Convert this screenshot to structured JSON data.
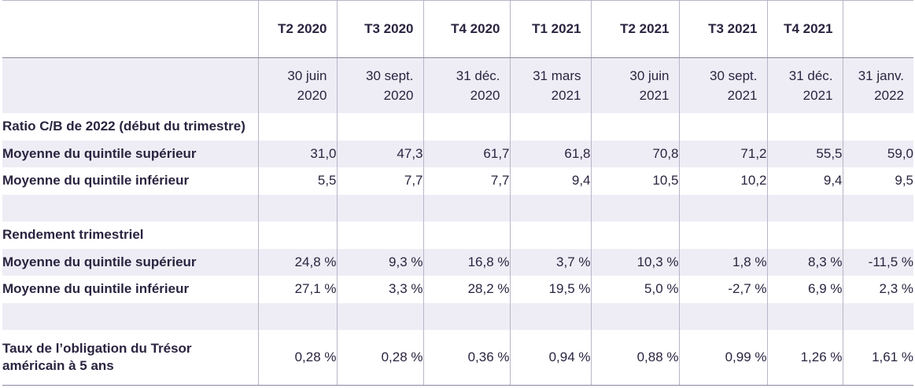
{
  "header": {
    "quarters": [
      "T2 2020",
      "T3 2020",
      "T4 2020",
      "T1 2021",
      "T2 2021",
      "T3 2021",
      "T4 2021",
      ""
    ],
    "dates": [
      [
        "30 juin",
        "2020"
      ],
      [
        "30 sept.",
        "2020"
      ],
      [
        "31 déc.",
        "2020"
      ],
      [
        "31 mars",
        "2021"
      ],
      [
        "30 juin",
        "2021"
      ],
      [
        "30 sept.",
        "2021"
      ],
      [
        "31 déc.",
        "2021"
      ],
      [
        "31 janv.",
        "2022"
      ]
    ]
  },
  "rows": {
    "pe_title": "Ratio C/B de 2022 (début du trimestre)",
    "pe_top": {
      "label": "Moyenne du quintile supérieur",
      "values": [
        "31,0",
        "47,3",
        "61,7",
        "61,8",
        "70,8",
        "71,2",
        "55,5",
        "59,0"
      ]
    },
    "pe_bottom": {
      "label": "Moyenne du quintile inférieur",
      "values": [
        "5,5",
        "7,7",
        "7,7",
        "9,4",
        "10,5",
        "10,2",
        "9,4",
        "9,5"
      ]
    },
    "ret_title": "Rendement trimestriel",
    "ret_top": {
      "label": "Moyenne du quintile supérieur",
      "values": [
        "24,8 %",
        "9,3 %",
        "16,8 %",
        "3,7 %",
        "10,3 %",
        "1,8 %",
        "8,3 %",
        "-11,5 %"
      ]
    },
    "ret_bottom": {
      "label": "Moyenne du quintile inférieur",
      "values": [
        "27,1 %",
        "3,3 %",
        "28,2 %",
        "19,5 %",
        "5,0 %",
        "-2,7 %",
        "6,9 %",
        "2,3 %"
      ]
    },
    "treasury": {
      "label": "Taux de l’obligation du Trésor américain à 5 ans",
      "values": [
        "0,28 %",
        "0,28 %",
        "0,36 %",
        "0,94 %",
        "0,88 %",
        "0,99 %",
        "1,26 %",
        "1,61 %"
      ]
    }
  }
}
